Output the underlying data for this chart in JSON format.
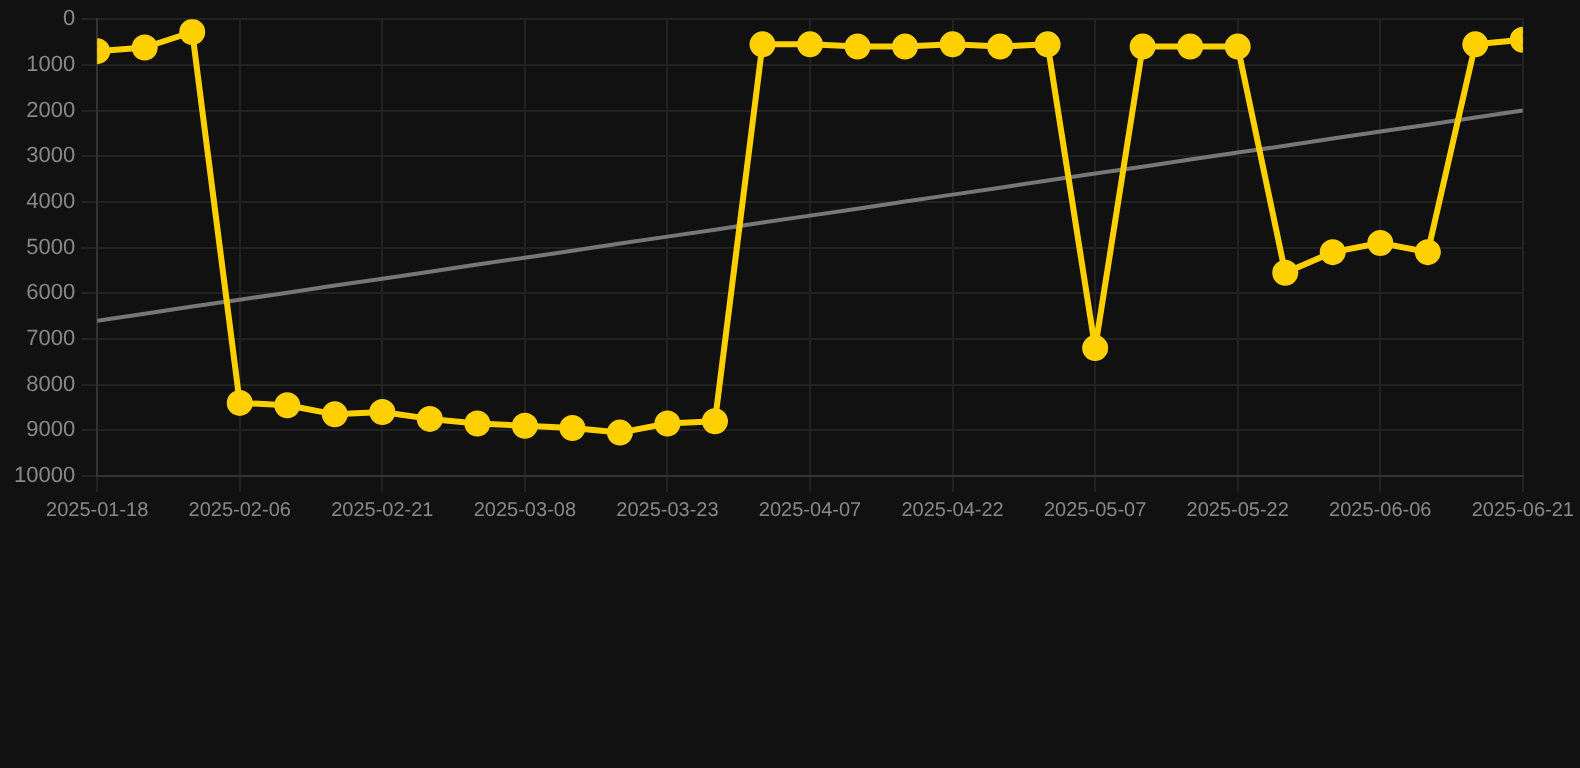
{
  "chart_data": {
    "type": "line",
    "categories": [
      "2025-01-18",
      null,
      null,
      "2025-02-06",
      null,
      null,
      "2025-02-21",
      null,
      null,
      "2025-03-08",
      null,
      null,
      "2025-03-23",
      null,
      null,
      "2025-04-07",
      null,
      null,
      "2025-04-22",
      null,
      null,
      "2025-05-07",
      null,
      null,
      "2025-05-22",
      null,
      null,
      "2025-06-06",
      null,
      null,
      "2025-06-21"
    ],
    "series": [
      {
        "color": "#ffd000",
        "marker": "circle",
        "values": [
          700,
          620,
          280,
          8400,
          8450,
          8650,
          8600,
          8750,
          8850,
          8900,
          8950,
          9050,
          8850,
          8800,
          550,
          550,
          600,
          600,
          550,
          600,
          550,
          7200,
          600,
          600,
          600,
          5550,
          5100,
          4900,
          5100,
          550,
          450
        ]
      },
      {
        "type": "line",
        "color": "#777777",
        "marker": "none",
        "values": [
          6600,
          6450,
          6290,
          6140,
          5990,
          5830,
          5680,
          5530,
          5370,
          5220,
          5070,
          4910,
          4760,
          4610,
          4450,
          4300,
          4150,
          3990,
          3840,
          3690,
          3530,
          3380,
          3230,
          3070,
          2920,
          2770,
          2610,
          2460,
          2310,
          2150,
          2000
        ]
      }
    ],
    "ylim": [
      10000,
      0
    ],
    "yticks": [
      0,
      1000,
      2000,
      3000,
      4000,
      5000,
      6000,
      7000,
      8000,
      9000,
      10000
    ],
    "grid": true,
    "legend": false
  }
}
